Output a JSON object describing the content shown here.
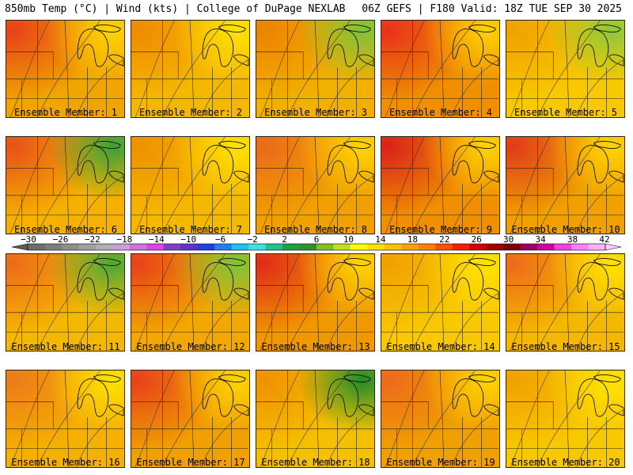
{
  "header": {
    "left": "850mb Temp (°C) | Wind (kts) | College of DuPage NEXLAB",
    "right": "06Z GEFS | F180 Valid: 18Z TUE SEP 30 2025"
  },
  "panels": [
    {
      "label": "Ensemble Member: 1",
      "base": "#f0a500",
      "warm": "#e8401a",
      "cool": "#ffd400"
    },
    {
      "label": "Ensemble Member: 2",
      "base": "#f5b800",
      "warm": "#ef8a00",
      "cool": "#ffe200"
    },
    {
      "label": "Ensemble Member: 3",
      "base": "#f2b000",
      "warm": "#ec8200",
      "cool": "#7cc23a"
    },
    {
      "label": "Ensemble Member: 4",
      "base": "#f09000",
      "warm": "#e8301a",
      "cool": "#ffd400"
    },
    {
      "label": "Ensemble Member: 5",
      "base": "#f8c800",
      "warm": "#f0a000",
      "cool": "#8cc83a"
    },
    {
      "label": "Ensemble Member: 6",
      "base": "#f5b000",
      "warm": "#e8501a",
      "cool": "#3aa03a"
    },
    {
      "label": "Ensemble Member: 7",
      "base": "#f5b800",
      "warm": "#ef9000",
      "cool": "#ffe200"
    },
    {
      "label": "Ensemble Member: 8",
      "base": "#f0a000",
      "warm": "#ec6a1a",
      "cool": "#ffd400"
    },
    {
      "label": "Ensemble Member: 9",
      "base": "#f09000",
      "warm": "#d8201a",
      "cool": "#ffd400"
    },
    {
      "label": "Ensemble Member: 10",
      "base": "#f0a000",
      "warm": "#e03a1a",
      "cool": "#ffd400"
    },
    {
      "label": "Ensemble Member: 11",
      "base": "#f5b800",
      "warm": "#ec6a1a",
      "cool": "#4aa83a"
    },
    {
      "label": "Ensemble Member: 12",
      "base": "#f2a800",
      "warm": "#e8401a",
      "cool": "#7cc23a"
    },
    {
      "label": "Ensemble Member: 13",
      "base": "#f09800",
      "warm": "#e02a1a",
      "cool": "#ffd400"
    },
    {
      "label": "Ensemble Member: 14",
      "base": "#f8c800",
      "warm": "#f0a000",
      "cool": "#ffe200"
    },
    {
      "label": "Ensemble Member: 15",
      "base": "#f5b800",
      "warm": "#ec6a1a",
      "cool": "#ffe200"
    },
    {
      "label": "Ensemble Member: 16",
      "base": "#f5b000",
      "warm": "#ec7a1a",
      "cool": "#ffe200"
    },
    {
      "label": "Ensemble Member: 17",
      "base": "#f0a000",
      "warm": "#e8401a",
      "cool": "#ffd400"
    },
    {
      "label": "Ensemble Member: 18",
      "base": "#f5c000",
      "warm": "#ef9000",
      "cool": "#1e8c2a"
    },
    {
      "label": "Ensemble Member: 19",
      "base": "#f0a000",
      "warm": "#ec6a1a",
      "cool": "#ffd400"
    },
    {
      "label": "Ensemble Member: 20",
      "base": "#f8c800",
      "warm": "#f0a000",
      "cool": "#ffe200"
    }
  ],
  "colorbar": {
    "ticks": [
      "−30",
      "−26",
      "−22",
      "−18",
      "−14",
      "−10",
      "−6",
      "−2",
      "2",
      "6",
      "10",
      "14",
      "18",
      "22",
      "26",
      "30",
      "34",
      "38",
      "42"
    ],
    "colors": [
      "#6e6e6e",
      "#7e7e7e",
      "#8e8e8e",
      "#a0a0a0",
      "#b0b0b0",
      "#c8a0d8",
      "#d070e0",
      "#e040e8",
      "#8040c0",
      "#6030d0",
      "#2040e0",
      "#2080f0",
      "#20c0f0",
      "#40e0e0",
      "#20c090",
      "#20a040",
      "#309030",
      "#80c020",
      "#c0e020",
      "#ffff00",
      "#ffe000",
      "#ffc000",
      "#ffa000",
      "#ff8000",
      "#ff5000",
      "#f02000",
      "#d00000",
      "#a00000",
      "#800000",
      "#a00060",
      "#d000a0",
      "#f040e0",
      "#ff80ff",
      "#ffb0ff"
    ]
  }
}
